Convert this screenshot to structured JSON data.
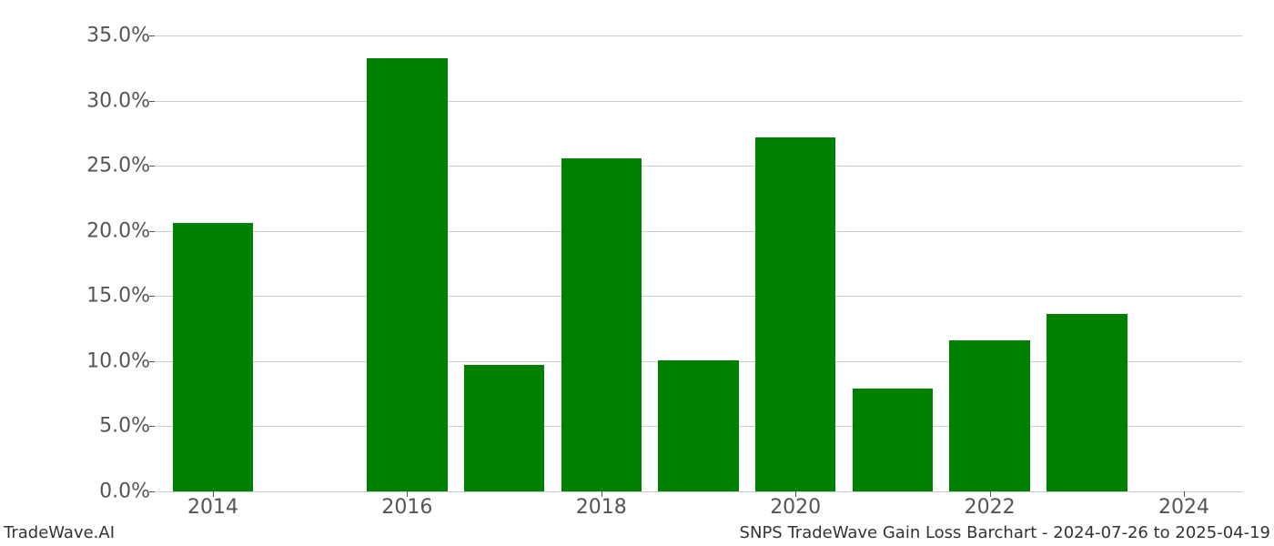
{
  "chart": {
    "type": "bar",
    "background_color": "#ffffff",
    "grid_color": "#cccccc",
    "bar_color": "#008000",
    "axis_label_color": "#555555",
    "axis_label_fontsize": 22,
    "footer_fontsize": 18,
    "footer_color": "#333333",
    "ylim": [
      0,
      36
    ],
    "yticks": [
      0,
      5,
      10,
      15,
      20,
      25,
      30,
      35
    ],
    "ytick_labels": [
      "0.0%",
      "5.0%",
      "10.0%",
      "15.0%",
      "20.0%",
      "25.0%",
      "30.0%",
      "35.0%"
    ],
    "xlim": [
      2013.4,
      2024.6
    ],
    "xticks": [
      2014,
      2016,
      2018,
      2020,
      2022,
      2024
    ],
    "xtick_labels": [
      "2014",
      "2016",
      "2018",
      "2020",
      "2022",
      "2024"
    ],
    "bar_width_years": 0.83,
    "data": [
      {
        "year": 2014,
        "value": 20.6
      },
      {
        "year": 2016,
        "value": 33.3
      },
      {
        "year": 2017,
        "value": 9.7
      },
      {
        "year": 2018,
        "value": 25.6
      },
      {
        "year": 2019,
        "value": 10.1
      },
      {
        "year": 2020,
        "value": 27.2
      },
      {
        "year": 2021,
        "value": 7.9
      },
      {
        "year": 2022,
        "value": 11.6
      },
      {
        "year": 2023,
        "value": 13.6
      }
    ]
  },
  "footer": {
    "left": "TradeWave.AI",
    "right": "SNPS TradeWave Gain Loss Barchart - 2024-07-26 to 2025-04-19"
  }
}
